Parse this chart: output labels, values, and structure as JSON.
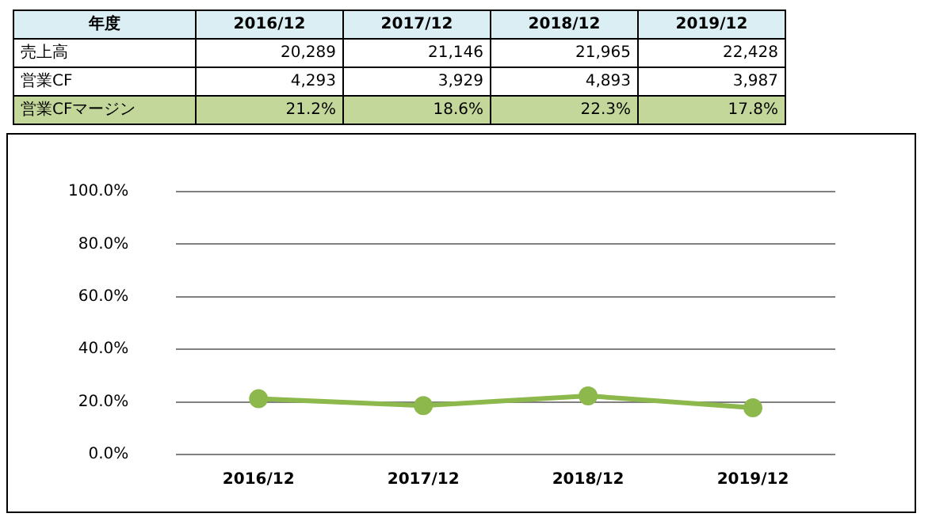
{
  "chart_data": [
    {
      "type": "other",
      "xlabel": "年度",
      "categories": [
        "2016/12",
        "2017/12",
        "2018/12",
        "2019/12"
      ],
      "series": [
        {
          "name": "売上高",
          "values": [
            20289,
            21146,
            21965,
            22428
          ],
          "value_labels": [
            "20,289",
            "21,146",
            "21,965",
            "22,428"
          ]
        },
        {
          "name": "営業CF",
          "values": [
            4293,
            3929,
            4893,
            3987
          ],
          "value_labels": [
            "4,293",
            "3,929",
            "4,893",
            "3,987"
          ]
        }
      ]
    },
    {
      "type": "line",
      "categories": [
        "2016/12",
        "2017/12",
        "2018/12",
        "2019/12"
      ],
      "series": [
        {
          "name": "営業CFマージン",
          "color": "#8cb84c",
          "values": [
            21.2,
            18.6,
            22.3,
            17.8
          ],
          "value_labels": [
            "21.2%",
            "18.6%",
            "22.3%",
            "17.8%"
          ]
        }
      ],
      "ylim": [
        0,
        100
      ],
      "yticks": [
        {
          "value": 0,
          "label": "0.0%"
        },
        {
          "value": 20,
          "label": "20.0%"
        },
        {
          "value": 40,
          "label": "40.0%"
        },
        {
          "value": 60,
          "label": "60.0%"
        },
        {
          "value": 80,
          "label": "80.0%"
        },
        {
          "value": 100,
          "label": "100.0%"
        }
      ],
      "grid": "y",
      "marker": "circle",
      "line_style": "solid"
    }
  ]
}
